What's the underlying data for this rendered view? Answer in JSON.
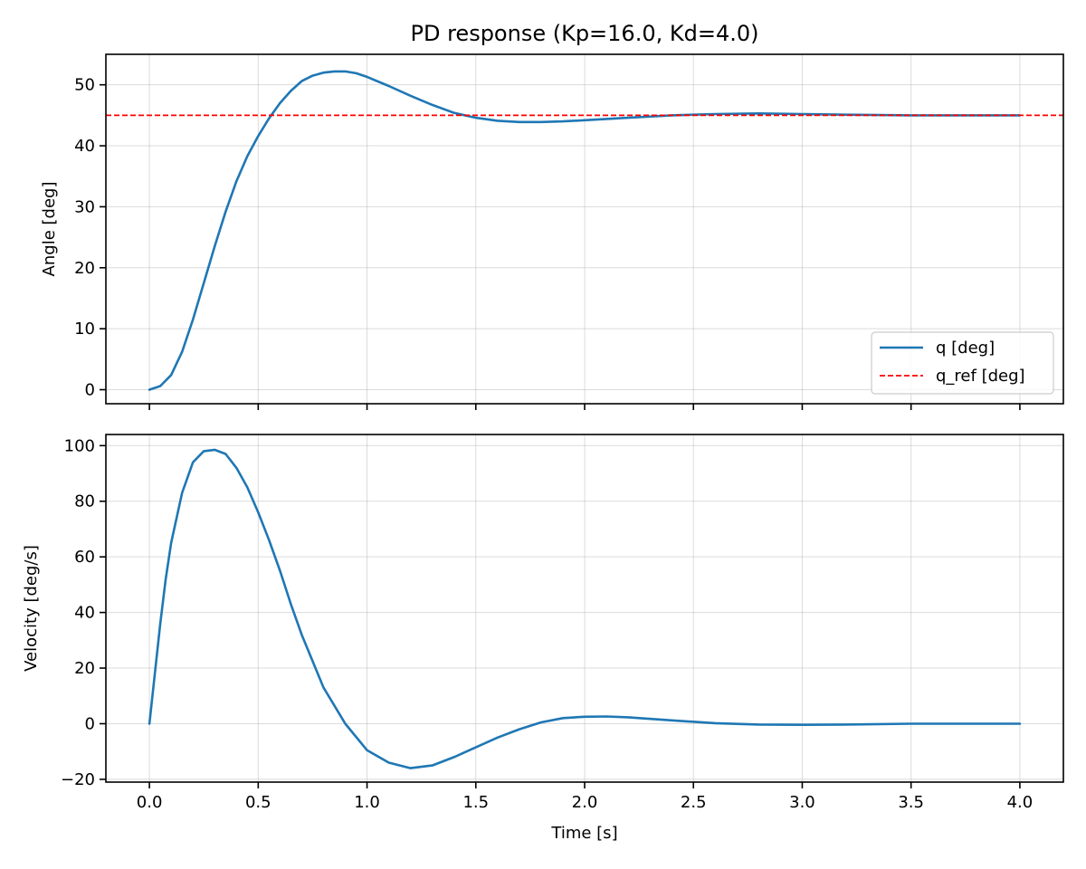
{
  "chart_data": [
    {
      "type": "line",
      "title": "PD response (Kp=16.0, Kd=4.0)",
      "xlabel": "",
      "ylabel": "Angle [deg]",
      "xlim": [
        -0.2,
        4.2
      ],
      "ylim": [
        -2.3,
        55
      ],
      "xticks": [
        0.0,
        0.5,
        1.0,
        1.5,
        2.0,
        2.5,
        3.0,
        3.5,
        4.0
      ],
      "xtick_labels_visible": false,
      "yticks": [
        0,
        10,
        20,
        30,
        40,
        50
      ],
      "ytick_labels": [
        "0",
        "10",
        "20",
        "30",
        "40",
        "50"
      ],
      "grid": true,
      "legend": "bottom-right",
      "series": [
        {
          "name": "q [deg]",
          "color": "#1f77b4",
          "style": "solid",
          "x": [
            0.0,
            0.05,
            0.1,
            0.15,
            0.2,
            0.25,
            0.3,
            0.35,
            0.4,
            0.45,
            0.5,
            0.55,
            0.6,
            0.65,
            0.7,
            0.75,
            0.8,
            0.85,
            0.9,
            0.95,
            1.0,
            1.1,
            1.2,
            1.3,
            1.4,
            1.5,
            1.6,
            1.7,
            1.8,
            1.9,
            2.0,
            2.2,
            2.4,
            2.6,
            2.8,
            3.0,
            3.2,
            3.5,
            4.0
          ],
          "y": [
            0.0,
            0.6,
            2.4,
            6.2,
            11.5,
            17.5,
            23.5,
            29.2,
            34.2,
            38.3,
            41.6,
            44.5,
            47.0,
            49.0,
            50.6,
            51.5,
            52.0,
            52.2,
            52.2,
            51.9,
            51.3,
            49.8,
            48.2,
            46.7,
            45.4,
            44.6,
            44.1,
            43.9,
            43.9,
            44.0,
            44.2,
            44.6,
            45.0,
            45.2,
            45.3,
            45.2,
            45.1,
            45.0,
            45.0
          ]
        },
        {
          "name": "q_ref [deg]",
          "color": "#ff0000",
          "style": "dashed",
          "x": [
            -0.2,
            4.2
          ],
          "y": [
            45,
            45
          ]
        }
      ]
    },
    {
      "type": "line",
      "title": "",
      "xlabel": "Time [s]",
      "ylabel": "Velocity [deg/s]",
      "xlim": [
        -0.2,
        4.2
      ],
      "ylim": [
        -21,
        104
      ],
      "xticks": [
        0.0,
        0.5,
        1.0,
        1.5,
        2.0,
        2.5,
        3.0,
        3.5,
        4.0
      ],
      "xtick_labels": [
        "0.0",
        "0.5",
        "1.0",
        "1.5",
        "2.0",
        "2.5",
        "3.0",
        "3.5",
        "4.0"
      ],
      "yticks": [
        -20,
        0,
        20,
        40,
        60,
        80,
        100
      ],
      "ytick_labels": [
        "−20",
        "0",
        "20",
        "40",
        "60",
        "80",
        "100"
      ],
      "grid": true,
      "series": [
        {
          "name": "",
          "color": "#1f77b4",
          "style": "solid",
          "x": [
            0.0,
            0.025,
            0.05,
            0.075,
            0.1,
            0.15,
            0.2,
            0.25,
            0.3,
            0.35,
            0.4,
            0.45,
            0.5,
            0.55,
            0.6,
            0.65,
            0.7,
            0.8,
            0.9,
            1.0,
            1.1,
            1.2,
            1.3,
            1.4,
            1.5,
            1.6,
            1.7,
            1.8,
            1.9,
            2.0,
            2.1,
            2.2,
            2.4,
            2.6,
            2.8,
            3.0,
            3.2,
            3.5,
            4.0
          ],
          "y": [
            0.0,
            18,
            36,
            52,
            65,
            83,
            94,
            98,
            98.5,
            97,
            92,
            85,
            76,
            66,
            55,
            43,
            32,
            13,
            0,
            -9.5,
            -14,
            -16,
            -15,
            -12,
            -8.5,
            -5,
            -2,
            0.5,
            2,
            2.5,
            2.6,
            2.3,
            1.2,
            0.2,
            -0.3,
            -0.4,
            -0.3,
            0,
            0
          ]
        }
      ]
    }
  ]
}
